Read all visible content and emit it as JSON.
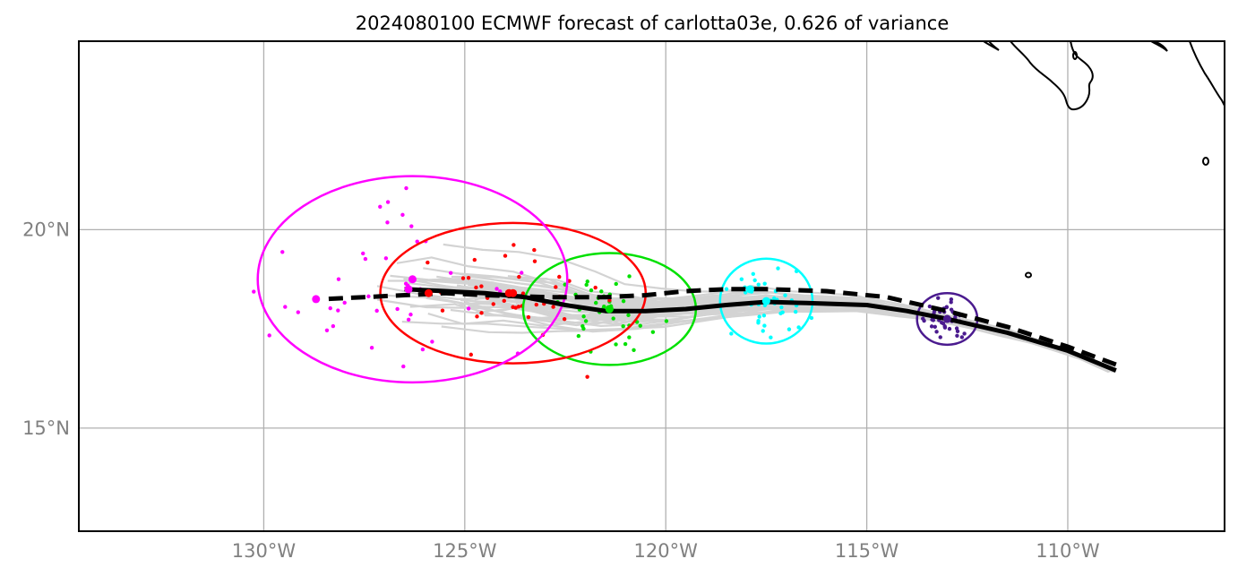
{
  "title": "2024080100 ECMWF forecast of carlotta03e, 0.626 of variance",
  "axes": {
    "lon_range": [
      -134.6,
      -106.1
    ],
    "lat_range": [
      12.4,
      24.75
    ],
    "lon_ticks": [
      -130,
      -125,
      -120,
      -115,
      -110
    ],
    "lat_ticks": [
      15,
      20
    ],
    "lon_labels": [
      "130°W",
      "125°W",
      "120°W",
      "115°W",
      "110°W"
    ],
    "lat_labels": [
      "15°N",
      "20°N"
    ],
    "grid": true
  },
  "colors": {
    "ensemble": "#d3d3d3",
    "mean_track": "#000000",
    "deterministic_track": "#000000",
    "coastline": "#000000",
    "grid": "#b0b0b0",
    "times": [
      "#4b1b8f",
      "#00ffff",
      "#00e000",
      "#ff0000",
      "#ff00ff"
    ]
  },
  "chart_data": {
    "type": "map",
    "mean_track": [
      [
        -108.8,
        16.45
      ],
      [
        -110.0,
        16.95
      ],
      [
        -111.5,
        17.4
      ],
      [
        -113.0,
        17.75
      ],
      [
        -114.0,
        17.95
      ],
      [
        -115.0,
        18.1
      ],
      [
        -116.5,
        18.15
      ],
      [
        -117.5,
        18.18
      ],
      [
        -118.5,
        18.1
      ],
      [
        -119.5,
        18.0
      ],
      [
        -120.5,
        17.95
      ],
      [
        -121.5,
        17.95
      ],
      [
        -122.5,
        18.1
      ],
      [
        -123.5,
        18.3
      ],
      [
        -124.5,
        18.4
      ],
      [
        -125.5,
        18.45
      ],
      [
        -126.5,
        18.5
      ]
    ],
    "deterministic_track": [
      [
        -108.8,
        16.6
      ],
      [
        -110.0,
        17.05
      ],
      [
        -111.5,
        17.55
      ],
      [
        -113.0,
        17.95
      ],
      [
        -114.5,
        18.3
      ],
      [
        -116.0,
        18.45
      ],
      [
        -117.5,
        18.5
      ],
      [
        -118.5,
        18.5
      ],
      [
        -119.5,
        18.45
      ],
      [
        -120.5,
        18.35
      ],
      [
        -121.5,
        18.3
      ],
      [
        -123.0,
        18.3
      ],
      [
        -124.5,
        18.35
      ],
      [
        -125.5,
        18.4
      ],
      [
        -126.5,
        18.35
      ],
      [
        -127.5,
        18.3
      ],
      [
        -128.5,
        18.25
      ]
    ],
    "time_centers": [
      {
        "lon": -113.0,
        "lat": 17.75,
        "color": "#4b1b8f",
        "radius_lon": 0.75,
        "radius_lat": 0.65
      },
      {
        "lon": -117.5,
        "lat": 18.2,
        "color": "#00ffff",
        "radius_lon": 1.15,
        "radius_lat": 1.07
      },
      {
        "lon": -121.4,
        "lat": 18.0,
        "color": "#00e000",
        "radius_lon": 2.15,
        "radius_lat": 1.41
      },
      {
        "lon": -123.8,
        "lat": 18.4,
        "color": "#ff0000",
        "radius_lon": 3.3,
        "radius_lat": 1.77
      },
      {
        "lon": -126.3,
        "lat": 18.75,
        "color": "#ff00ff",
        "radius_lon": 3.85,
        "radius_lat": 2.6
      }
    ],
    "deterministic_points": [
      {
        "lon": -117.9,
        "lat": 18.5,
        "color": "#00ffff"
      },
      {
        "lon": -121.4,
        "lat": 18.0,
        "color": "#00e000"
      },
      {
        "lon": -123.9,
        "lat": 18.4,
        "color": "#ff0000"
      },
      {
        "lon": -125.9,
        "lat": 18.4,
        "color": "#ff0000"
      },
      {
        "lon": -126.4,
        "lat": 18.5,
        "color": "#ff00ff"
      },
      {
        "lon": -128.7,
        "lat": 18.25,
        "color": "#ff00ff"
      }
    ],
    "ensemble_count": 50
  }
}
